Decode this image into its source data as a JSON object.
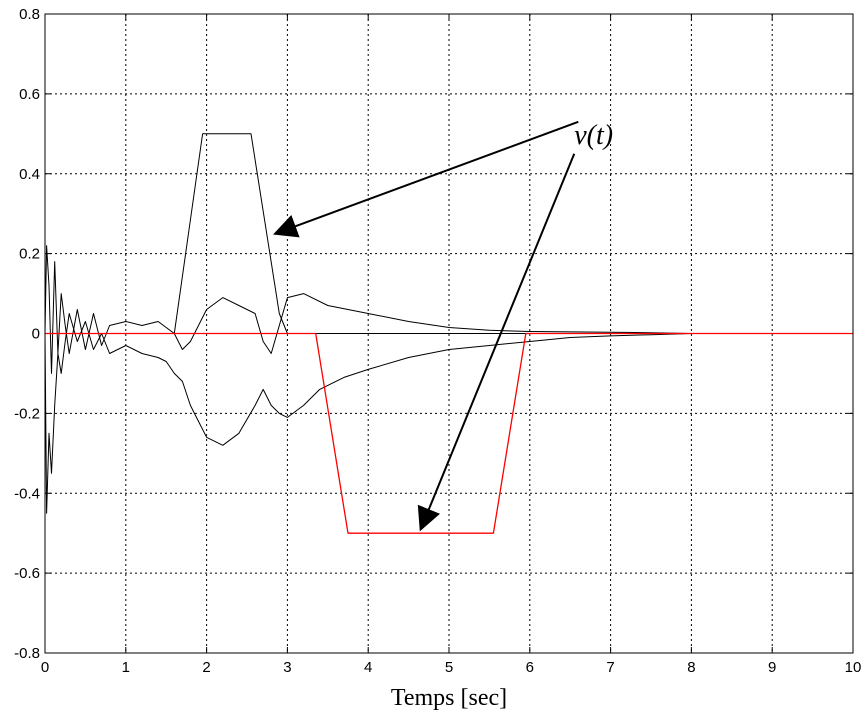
{
  "chart_data": {
    "type": "line",
    "title": "",
    "xlabel": "Temps [sec]",
    "ylabel": "",
    "xlim": [
      0,
      10
    ],
    "ylim": [
      -0.8,
      0.8
    ],
    "xticks": [
      0,
      1,
      2,
      3,
      4,
      5,
      6,
      7,
      8,
      9,
      10
    ],
    "yticks": [
      -0.8,
      -0.6,
      -0.4,
      -0.2,
      0,
      0.2,
      0.4,
      0.6,
      0.8
    ],
    "xtick_labels": [
      "0",
      "1",
      "2",
      "3",
      "4",
      "5",
      "6",
      "7",
      "8",
      "9",
      "10"
    ],
    "ytick_labels": [
      "-0.8",
      "-0.6",
      "-0.4",
      "-0.2",
      "0",
      "0.2",
      "0.4",
      "0.6",
      "0.8"
    ],
    "grid": true,
    "series": [
      {
        "color": "#000000",
        "x": [
          0,
          1.6,
          1.95,
          2.55,
          2.9,
          3.0,
          10
        ],
        "y": [
          0,
          0,
          0.5,
          0.5,
          0.05,
          0,
          0
        ]
      },
      {
        "color": "#ff0000",
        "x": [
          0,
          3.35,
          3.75,
          5.55,
          5.95,
          10
        ],
        "y": [
          0,
          0,
          -0.5,
          -0.5,
          0,
          0
        ]
      },
      {
        "color": "#000000",
        "x": [
          0,
          0.02,
          0.05,
          0.08,
          0.12,
          0.16,
          0.2,
          0.25,
          0.3,
          0.4,
          0.5,
          0.6,
          0.7,
          0.8,
          1.0,
          1.2,
          1.4,
          1.6,
          1.7,
          1.8,
          1.9,
          2.0,
          2.2,
          2.4,
          2.6,
          2.7,
          2.8,
          2.9,
          3.0,
          3.2,
          3.5,
          4.0,
          4.5,
          5.0,
          5.5,
          6.0,
          6.5,
          7.0,
          7.5,
          8.0,
          10
        ],
        "y": [
          0,
          0.22,
          0.12,
          -0.1,
          0.18,
          -0.05,
          0.1,
          0.02,
          -0.05,
          0.06,
          -0.04,
          0.05,
          -0.03,
          0.02,
          0.03,
          0.02,
          0.03,
          0.0,
          -0.04,
          -0.02,
          0.02,
          0.06,
          0.09,
          0.07,
          0.05,
          -0.02,
          -0.05,
          0.02,
          0.09,
          0.1,
          0.07,
          0.05,
          0.03,
          0.015,
          0.008,
          0.005,
          0.004,
          0.003,
          0.002,
          0.0,
          0.0
        ]
      },
      {
        "color": "#000000",
        "x": [
          0,
          0.02,
          0.05,
          0.08,
          0.12,
          0.16,
          0.2,
          0.25,
          0.3,
          0.4,
          0.5,
          0.6,
          0.7,
          0.8,
          1.0,
          1.2,
          1.4,
          1.5,
          1.6,
          1.7,
          1.8,
          1.9,
          2.0,
          2.2,
          2.4,
          2.6,
          2.7,
          2.8,
          2.9,
          3.0,
          3.2,
          3.4,
          3.7,
          4.0,
          4.5,
          5.0,
          5.5,
          6.0,
          6.5,
          7.0,
          7.5,
          8.0,
          10
        ],
        "y": [
          0,
          -0.45,
          -0.25,
          -0.35,
          -0.18,
          -0.05,
          -0.1,
          -0.02,
          0.05,
          -0.02,
          0.03,
          -0.04,
          0.0,
          -0.05,
          -0.03,
          -0.05,
          -0.06,
          -0.07,
          -0.1,
          -0.12,
          -0.18,
          -0.22,
          -0.26,
          -0.28,
          -0.25,
          -0.18,
          -0.14,
          -0.18,
          -0.2,
          -0.21,
          -0.18,
          -0.14,
          -0.11,
          -0.09,
          -0.06,
          -0.04,
          -0.03,
          -0.02,
          -0.01,
          -0.006,
          -0.003,
          0.0,
          0.0
        ]
      }
    ],
    "annotations": [
      {
        "text": "v(t)",
        "x": 6.55,
        "y": 0.5,
        "arrows": [
          {
            "from": [
              6.6,
              0.53
            ],
            "to": [
              2.85,
              0.25
            ]
          },
          {
            "from": [
              6.55,
              0.45
            ],
            "to": [
              4.65,
              -0.49
            ]
          }
        ]
      }
    ]
  }
}
